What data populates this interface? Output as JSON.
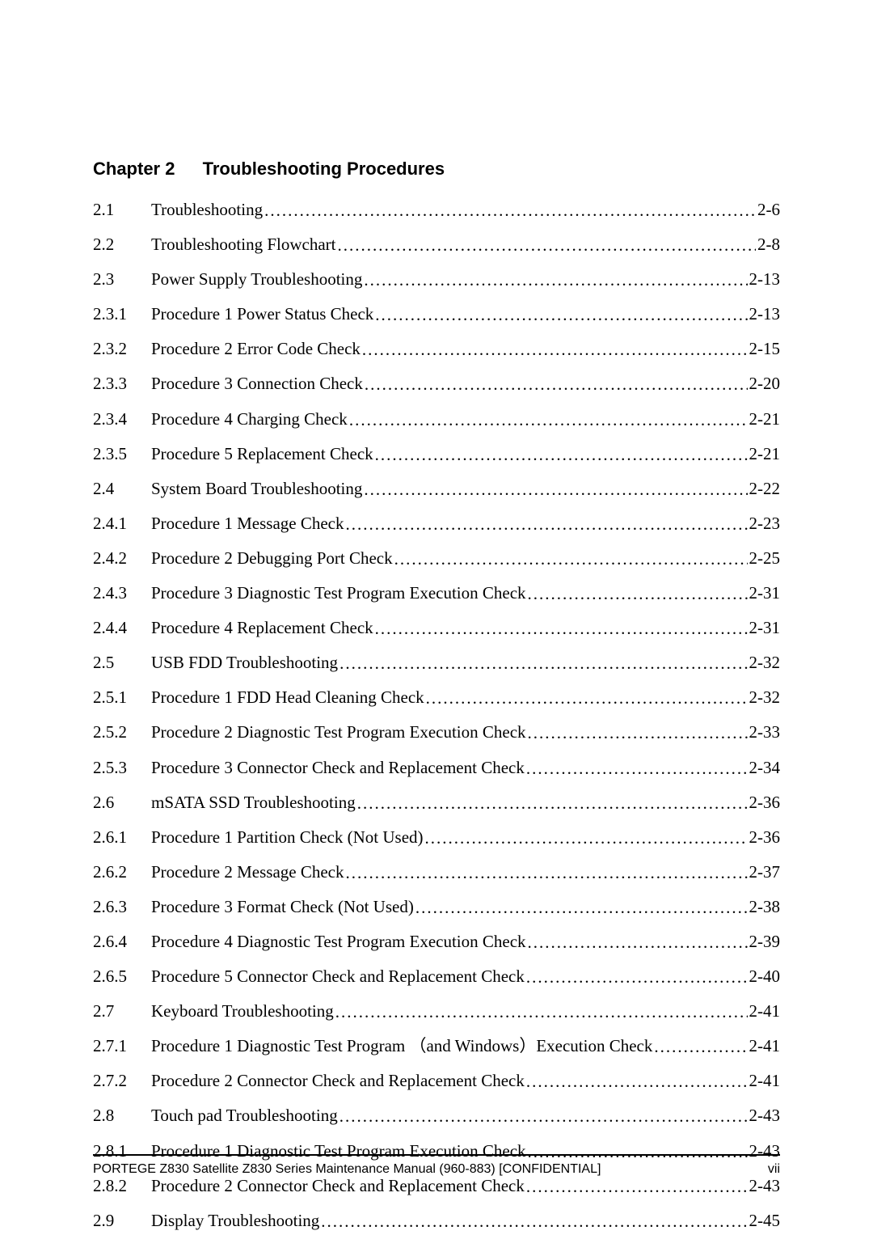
{
  "chapterHeading": {
    "prefix": "Chapter 2",
    "title": "Troubleshooting Procedures"
  },
  "toc": [
    {
      "num": "2.1",
      "title": "Troubleshooting",
      "page": "2-6"
    },
    {
      "num": "2.2",
      "title": "Troubleshooting Flowchart",
      "page": "2-8"
    },
    {
      "num": "2.3",
      "title": "Power Supply Troubleshooting",
      "page": "2-13"
    },
    {
      "num": "2.3.1",
      "title": "Procedure 1 Power Status Check",
      "page": "2-13"
    },
    {
      "num": "2.3.2",
      "title": "Procedure 2 Error Code Check",
      "page": "2-15"
    },
    {
      "num": "2.3.3",
      "title": "Procedure 3 Connection Check",
      "page": "2-20"
    },
    {
      "num": "2.3.4",
      "title": "Procedure 4 Charging Check",
      "page": "2-21"
    },
    {
      "num": "2.3.5",
      "title": "Procedure 5 Replacement Check",
      "page": "2-21"
    },
    {
      "num": "2.4",
      "title": "System Board Troubleshooting",
      "page": "2-22"
    },
    {
      "num": "2.4.1",
      "title": "Procedure 1 Message Check",
      "page": "2-23"
    },
    {
      "num": "2.4.2",
      "title": "Procedure 2 Debugging Port Check",
      "page": "2-25"
    },
    {
      "num": "2.4.3",
      "title": "Procedure 3 Diagnostic Test Program Execution Check",
      "page": "2-31"
    },
    {
      "num": "2.4.4",
      "title": "Procedure 4 Replacement Check",
      "page": "2-31"
    },
    {
      "num": "2.5",
      "title": "USB FDD Troubleshooting",
      "page": "2-32"
    },
    {
      "num": "2.5.1",
      "title": "Procedure 1 FDD Head Cleaning Check",
      "page": "2-32"
    },
    {
      "num": "2.5.2",
      "title": "Procedure 2 Diagnostic Test Program Execution Check",
      "page": "2-33"
    },
    {
      "num": "2.5.3",
      "title": "Procedure 3 Connector Check and Replacement Check",
      "page": "2-34"
    },
    {
      "num": "2.6",
      "title": "mSATA SSD Troubleshooting",
      "page": "2-36"
    },
    {
      "num": "2.6.1",
      "title": "Procedure 1 Partition Check (Not Used)",
      "page": "2-36"
    },
    {
      "num": "2.6.2",
      "title": "Procedure 2 Message Check",
      "page": "2-37"
    },
    {
      "num": "2.6.3",
      "title": "Procedure 3 Format Check (Not Used)",
      "page": "2-38"
    },
    {
      "num": "2.6.4",
      "title": "Procedure 4 Diagnostic Test Program Execution Check",
      "page": "2-39"
    },
    {
      "num": "2.6.5",
      "title": "Procedure 5 Connector Check and Replacement Check",
      "page": "2-40"
    },
    {
      "num": "2.7",
      "title": "Keyboard Troubleshooting",
      "page": "2-41"
    },
    {
      "num": "2.7.1",
      "title": "Procedure 1 Diagnostic Test Program （and Windows）Execution Check",
      "page": "2-41"
    },
    {
      "num": "2.7.2",
      "title": "Procedure 2 Connector Check and Replacement Check",
      "page": "2-41"
    },
    {
      "num": "2.8",
      "title": "Touch pad Troubleshooting",
      "page": "2-43"
    },
    {
      "num": "2.8.1",
      "title": "Procedure 1 Diagnostic Test Program Execution Check",
      "page": "2-43"
    },
    {
      "num": "2.8.2",
      "title": "Procedure 2 Connector Check and Replacement Check",
      "page": "2-43"
    },
    {
      "num": "2.9",
      "title": "Display Troubleshooting",
      "page": "2-45"
    }
  ],
  "footer": {
    "left": "PORTEGE Z830 Satellite Z830 Series Maintenance Manual (960-883) [CONFIDENTIAL]",
    "right": "vii"
  },
  "leaderChar": "."
}
